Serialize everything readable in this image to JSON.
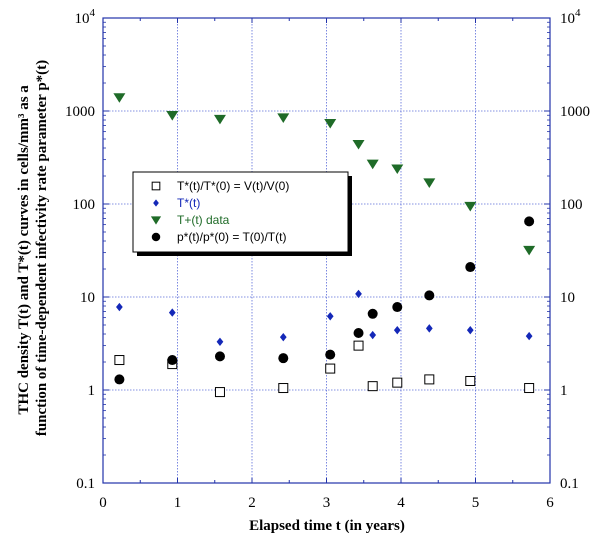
{
  "chart_data": {
    "type": "scatter",
    "xlabel": "Elapsed time t (in years)",
    "ylabel_lines": [
      "THC density T(t) and T*(t) curves in cells/mm³ as a",
      "function of time-dependent infectivity rate parameter p*(t)"
    ],
    "xlim": [
      0,
      6
    ],
    "ylim": [
      0.1,
      10000
    ],
    "yscale": "log",
    "grid": true,
    "legend_position": "center-left",
    "x_ticks": [
      "0",
      "1",
      "2",
      "3",
      "4",
      "5",
      "6"
    ],
    "y_ticks": [
      {
        "value": 0.1,
        "base": "0.1",
        "sup": ""
      },
      {
        "value": 1,
        "base": "1",
        "sup": ""
      },
      {
        "value": 10,
        "base": "10",
        "sup": ""
      },
      {
        "value": 100,
        "base": "100",
        "sup": ""
      },
      {
        "value": 1000,
        "base": "1000",
        "sup": ""
      },
      {
        "value": 10000,
        "base": "10",
        "sup": "4"
      }
    ],
    "colors": {
      "grid": "#5b6cd9",
      "axis": "#2233aa",
      "tplus": "#1f6b28",
      "tstar": "#1428b8",
      "black": "#000000"
    },
    "series": [
      {
        "name": "T*(t)/T*(0) = V(t)/V(0)",
        "marker": "open-square",
        "color": "#000000",
        "points": [
          [
            0.22,
            2.1
          ],
          [
            0.93,
            1.9
          ],
          [
            1.57,
            0.95
          ],
          [
            2.42,
            1.05
          ],
          [
            3.05,
            1.7
          ],
          [
            3.43,
            3.0
          ],
          [
            3.62,
            1.1
          ],
          [
            3.95,
            1.2
          ],
          [
            4.38,
            1.3
          ],
          [
            4.93,
            1.25
          ],
          [
            5.72,
            1.05
          ]
        ]
      },
      {
        "name": "T*(t)",
        "marker": "diamond",
        "color": "#1428b8",
        "points": [
          [
            0.22,
            7.8
          ],
          [
            0.93,
            6.8
          ],
          [
            1.57,
            3.3
          ],
          [
            2.42,
            3.7
          ],
          [
            3.05,
            6.2
          ],
          [
            3.43,
            10.8
          ],
          [
            3.62,
            3.9
          ],
          [
            3.95,
            4.4
          ],
          [
            4.38,
            4.6
          ],
          [
            4.93,
            4.4
          ],
          [
            5.72,
            3.8
          ]
        ]
      },
      {
        "name": "T+(t) data",
        "marker": "triangle-down",
        "color": "#1f6b28",
        "points": [
          [
            0.22,
            1400
          ],
          [
            0.93,
            900
          ],
          [
            1.57,
            820
          ],
          [
            2.42,
            850
          ],
          [
            3.05,
            740
          ],
          [
            3.43,
            440
          ],
          [
            3.62,
            270
          ],
          [
            3.95,
            240
          ],
          [
            4.38,
            170
          ],
          [
            4.93,
            95
          ],
          [
            5.72,
            32
          ]
        ]
      },
      {
        "name": "p*(t)/p*(0) = T(0)/T(t)",
        "marker": "circle",
        "color": "#000000",
        "points": [
          [
            0.22,
            1.3
          ],
          [
            0.93,
            2.1
          ],
          [
            1.57,
            2.3
          ],
          [
            2.42,
            2.2
          ],
          [
            3.05,
            2.4
          ],
          [
            3.43,
            4.1
          ],
          [
            3.62,
            6.6
          ],
          [
            3.95,
            7.8
          ],
          [
            4.38,
            10.4
          ],
          [
            4.93,
            21
          ],
          [
            5.72,
            65
          ]
        ]
      }
    ]
  }
}
